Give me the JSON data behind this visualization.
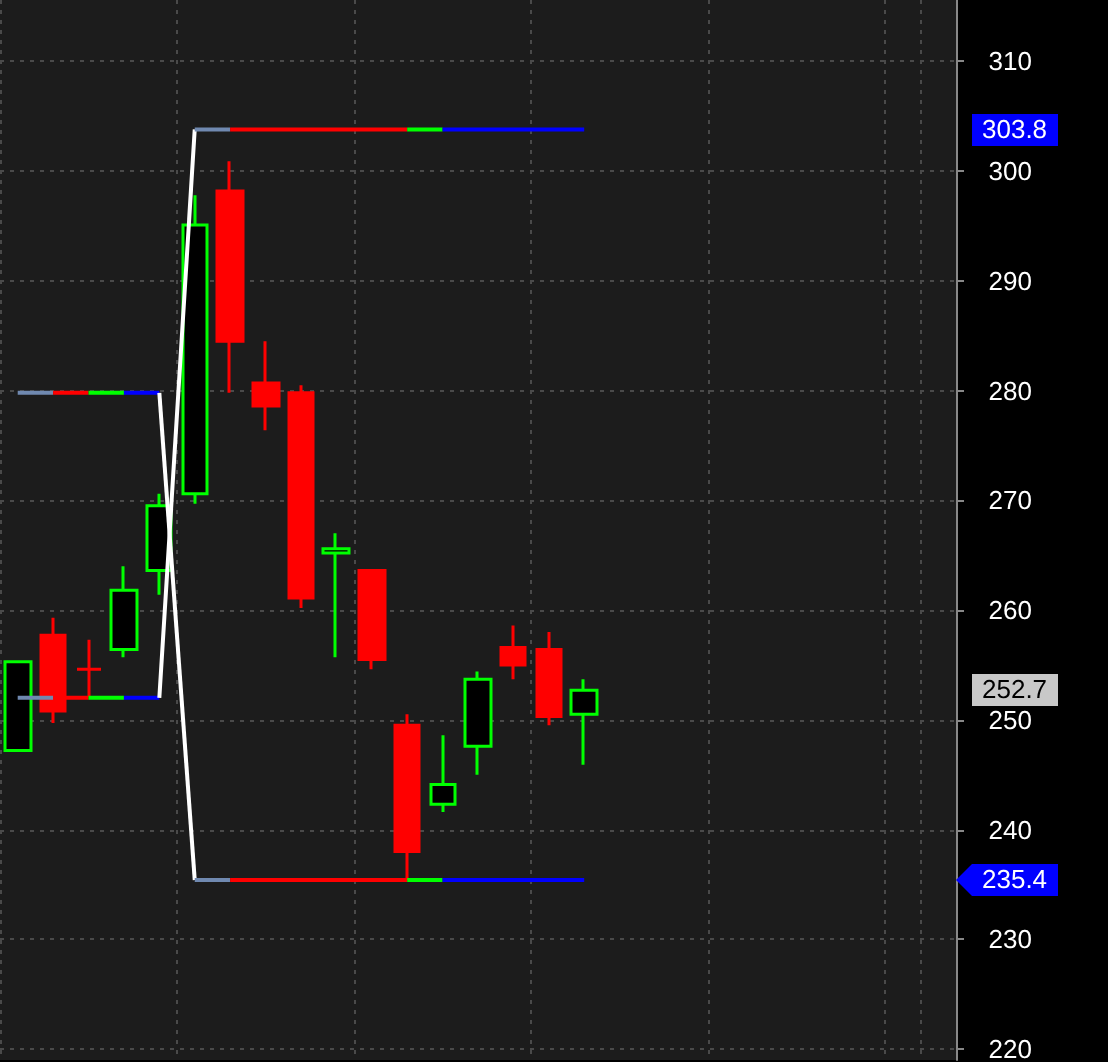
{
  "chart_data": {
    "type": "candlestick",
    "categories": [
      null,
      null,
      null,
      null,
      null,
      null,
      null,
      null,
      null,
      null,
      null,
      null,
      null,
      null,
      null,
      null,
      null,
      null,
      null,
      null,
      null,
      null,
      null,
      null,
      null,
      null,
      null
    ],
    "ohlc": [
      [
        247.2,
        255.3,
        247.2,
        255.3
      ],
      [
        257.7,
        259.3,
        249.7,
        250.8
      ],
      [
        254.6,
        257.3,
        252.1,
        254.6
      ],
      [
        256.4,
        264.0,
        255.7,
        261.8
      ],
      [
        263.6,
        270.6,
        261.4,
        269.5
      ],
      [
        270.6,
        297.8,
        269.7,
        295.1
      ],
      [
        298.2,
        300.9,
        279.8,
        284.5
      ],
      [
        280.7,
        284.5,
        276.4,
        278.6
      ],
      [
        279.8,
        280.5,
        260.2,
        261.1
      ],
      [
        265.2,
        267.0,
        255.7,
        265.6
      ],
      [
        263.6,
        263.6,
        254.6,
        255.5
      ],
      [
        249.5,
        250.5,
        235.4,
        238.0
      ],
      [
        242.3,
        248.6,
        241.6,
        244.1
      ],
      [
        247.6,
        254.4,
        245.0,
        253.7
      ],
      [
        256.6,
        258.6,
        253.7,
        255.0
      ],
      [
        256.4,
        258.0,
        249.5,
        250.3
      ],
      [
        250.5,
        253.7,
        245.9,
        252.7
      ],
      null,
      null,
      null,
      null,
      null,
      null,
      null,
      null,
      null,
      null
    ],
    "colors": [
      "#00ff00",
      "#ff0000",
      "#ff0000",
      "#00ff00",
      "#00ff00",
      "#00ff00",
      "#ff0000",
      "#ff0000",
      "#ff0000",
      "#00ff00",
      "#ff0000",
      "#ff0000",
      "#00ff00",
      "#00ff00",
      "#ff0000",
      "#ff0000",
      "#00ff00",
      null,
      null,
      null,
      null,
      null,
      null,
      null,
      null,
      null,
      null
    ],
    "series": [
      {
        "type": "line",
        "values": [
          279.8,
          279.8,
          null,
          null,
          null,
          null,
          null,
          null,
          null,
          null,
          null,
          null,
          null,
          null,
          null,
          null,
          null,
          null,
          null,
          null,
          null,
          null,
          null,
          null,
          null,
          null,
          null
        ],
        "color": "#7089b0"
      },
      {
        "type": "line",
        "values": [
          null,
          279.8,
          279.8,
          null,
          null,
          null,
          null,
          null,
          null,
          null,
          null,
          null,
          null,
          null,
          null,
          null,
          null,
          null,
          null,
          null,
          null,
          null,
          null,
          null,
          null,
          null,
          null
        ],
        "color": "#ff0000"
      },
      {
        "type": "line",
        "values": [
          null,
          null,
          279.8,
          279.8,
          null,
          null,
          null,
          null,
          null,
          null,
          null,
          null,
          null,
          null,
          null,
          null,
          null,
          null,
          null,
          null,
          null,
          null,
          null,
          null,
          null,
          null,
          null
        ],
        "color": "#00ff00"
      },
      {
        "type": "line",
        "values": [
          null,
          null,
          null,
          279.8,
          279.8,
          null,
          null,
          null,
          null,
          null,
          null,
          null,
          null,
          null,
          null,
          null,
          null,
          null,
          null,
          null,
          null,
          null,
          null,
          null,
          null,
          null,
          null
        ],
        "color": "#0000ff"
      },
      {
        "type": "line",
        "values": [
          252.0,
          252.0,
          null,
          null,
          null,
          null,
          null,
          null,
          null,
          null,
          null,
          null,
          null,
          null,
          null,
          null,
          null,
          null,
          null,
          null,
          null,
          null,
          null,
          null,
          null,
          null,
          null
        ],
        "color": "#7089b0"
      },
      {
        "type": "line",
        "values": [
          null,
          252.0,
          252.0,
          null,
          null,
          null,
          null,
          null,
          null,
          null,
          null,
          null,
          null,
          null,
          null,
          null,
          null,
          null,
          null,
          null,
          null,
          null,
          null,
          null,
          null,
          null,
          null
        ],
        "color": "#ff0000"
      },
      {
        "type": "line",
        "values": [
          null,
          null,
          252.0,
          252.0,
          null,
          null,
          null,
          null,
          null,
          null,
          null,
          null,
          null,
          null,
          null,
          null,
          null,
          null,
          null,
          null,
          null,
          null,
          null,
          null,
          null,
          null,
          null
        ],
        "color": "#00ff00"
      },
      {
        "type": "line",
        "values": [
          null,
          null,
          null,
          252.0,
          252.0,
          null,
          null,
          null,
          null,
          null,
          null,
          null,
          null,
          null,
          null,
          null,
          null,
          null,
          null,
          null,
          null,
          null,
          null,
          null,
          null,
          null,
          null
        ],
        "color": "#0000ff"
      },
      {
        "type": "line",
        "values": [
          null,
          null,
          null,
          null,
          279.8,
          235.4,
          null,
          null,
          null,
          null,
          null,
          null,
          null,
          null,
          null,
          null,
          null,
          null,
          null,
          null,
          null,
          null,
          null,
          null,
          null,
          null,
          null
        ],
        "color": "#ffffff"
      },
      {
        "type": "line",
        "values": [
          null,
          null,
          null,
          null,
          252.0,
          303.8,
          null,
          null,
          null,
          null,
          null,
          null,
          null,
          null,
          null,
          null,
          null,
          null,
          null,
          null,
          null,
          null,
          null,
          null,
          null,
          null,
          null
        ],
        "color": "#ffffff"
      },
      {
        "type": "line",
        "values": [
          null,
          null,
          null,
          null,
          null,
          303.8,
          303.8,
          null,
          null,
          null,
          null,
          null,
          null,
          null,
          null,
          null,
          null,
          null,
          null,
          null,
          null,
          null,
          null,
          null,
          null,
          null,
          null
        ],
        "color": "#7089b0"
      },
      {
        "type": "line",
        "values": [
          null,
          null,
          null,
          null,
          null,
          null,
          303.8,
          303.8,
          303.8,
          303.8,
          303.8,
          303.8,
          null,
          null,
          null,
          null,
          null,
          null,
          null,
          null,
          null,
          null,
          null,
          null,
          null,
          null,
          null
        ],
        "color": "#ff0000"
      },
      {
        "type": "line",
        "values": [
          null,
          null,
          null,
          null,
          null,
          null,
          null,
          null,
          null,
          null,
          null,
          303.8,
          303.8,
          null,
          null,
          null,
          null,
          null,
          null,
          null,
          null,
          null,
          null,
          null,
          null,
          null,
          null
        ],
        "color": "#00ff00"
      },
      {
        "type": "line",
        "values": [
          null,
          null,
          null,
          null,
          null,
          null,
          null,
          null,
          null,
          null,
          null,
          null,
          303.8,
          303.8,
          303.8,
          303.8,
          303.8,
          null,
          null,
          null,
          null,
          null,
          null,
          null,
          null,
          null,
          null
        ],
        "color": "#0000ff"
      },
      {
        "type": "line",
        "values": [
          null,
          null,
          null,
          null,
          null,
          235.4,
          235.4,
          null,
          null,
          null,
          null,
          null,
          null,
          null,
          null,
          null,
          null,
          null,
          null,
          null,
          null,
          null,
          null,
          null,
          null,
          null,
          null
        ],
        "color": "#7089b0"
      },
      {
        "type": "line",
        "values": [
          null,
          null,
          null,
          null,
          null,
          null,
          235.4,
          235.4,
          235.4,
          235.4,
          235.4,
          235.4,
          null,
          null,
          null,
          null,
          null,
          null,
          null,
          null,
          null,
          null,
          null,
          null,
          null,
          null,
          null
        ],
        "color": "#ff0000"
      },
      {
        "type": "line",
        "values": [
          null,
          null,
          null,
          null,
          null,
          null,
          null,
          null,
          null,
          null,
          null,
          235.4,
          235.4,
          null,
          null,
          null,
          null,
          null,
          null,
          null,
          null,
          null,
          null,
          null,
          null,
          null,
          null
        ],
        "color": "#00ff00"
      },
      {
        "type": "line",
        "values": [
          null,
          null,
          null,
          null,
          null,
          null,
          null,
          null,
          null,
          null,
          null,
          null,
          235.4,
          235.4,
          235.4,
          235.4,
          235.4,
          null,
          null,
          null,
          null,
          null,
          null,
          null,
          null,
          null,
          null
        ],
        "color": "#0000ff"
      }
    ],
    "ylim": [
      219,
      315.6
    ],
    "yticks": [
      220,
      230,
      240,
      250,
      260,
      270,
      280,
      290,
      300,
      310
    ],
    "grid": true,
    "tick_labels": "y",
    "marker": "none",
    "annotations": [
      "303.8",
      "252.7",
      "235.4"
    ]
  }
}
